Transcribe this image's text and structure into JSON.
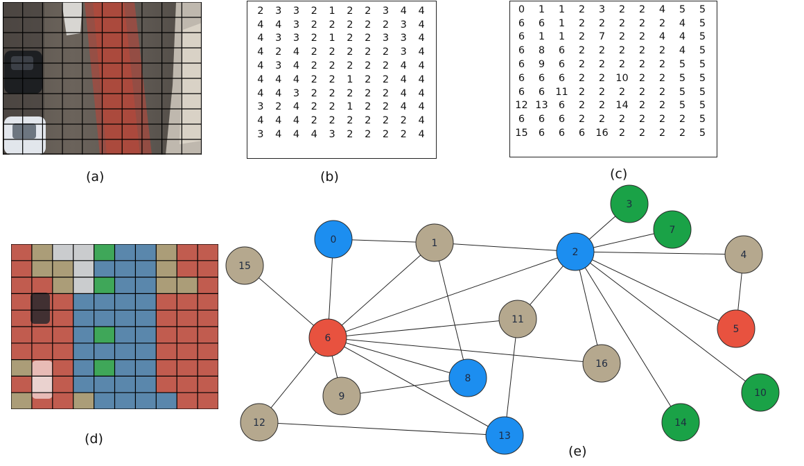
{
  "captions": {
    "a": "(a)",
    "b": "(b)",
    "c": "(c)",
    "d": "(d)",
    "e": "(e)"
  },
  "matrix_b": [
    [
      "2",
      "3",
      "3",
      "2",
      "1",
      "2",
      "2",
      "3",
      "4",
      "4"
    ],
    [
      "4",
      "4",
      "3",
      "2",
      "2",
      "2",
      "2",
      "2",
      "3",
      "4"
    ],
    [
      "4",
      "3",
      "3",
      "2",
      "1",
      "2",
      "2",
      "3",
      "3",
      "4"
    ],
    [
      "4",
      "2",
      "4",
      "2",
      "2",
      "2",
      "2",
      "2",
      "3",
      "4"
    ],
    [
      "4",
      "3",
      "4",
      "2",
      "2",
      "2",
      "2",
      "2",
      "4",
      "4"
    ],
    [
      "4",
      "4",
      "4",
      "2",
      "2",
      "1",
      "2",
      "2",
      "4",
      "4"
    ],
    [
      "4",
      "4",
      "3",
      "2",
      "2",
      "2",
      "2",
      "2",
      "4",
      "4"
    ],
    [
      "3",
      "2",
      "4",
      "2",
      "2",
      "1",
      "2",
      "2",
      "4",
      "4"
    ],
    [
      "4",
      "4",
      "4",
      "2",
      "2",
      "2",
      "2",
      "2",
      "2",
      "4"
    ],
    [
      "3",
      "4",
      "4",
      "4",
      "3",
      "2",
      "2",
      "2",
      "2",
      "4"
    ]
  ],
  "matrix_c": [
    [
      "0",
      "1",
      "1",
      "2",
      "3",
      "2",
      "2",
      "4",
      "5",
      "5"
    ],
    [
      "6",
      "6",
      "1",
      "2",
      "2",
      "2",
      "2",
      "2",
      "4",
      "5"
    ],
    [
      "6",
      "1",
      "1",
      "2",
      "7",
      "2",
      "2",
      "4",
      "4",
      "5"
    ],
    [
      "6",
      "8",
      "6",
      "2",
      "2",
      "2",
      "2",
      "2",
      "4",
      "5"
    ],
    [
      "6",
      "9",
      "6",
      "2",
      "2",
      "2",
      "2",
      "2",
      "5",
      "5"
    ],
    [
      "6",
      "6",
      "6",
      "2",
      "2",
      "10",
      "2",
      "2",
      "5",
      "5"
    ],
    [
      "6",
      "6",
      "11",
      "2",
      "2",
      "2",
      "2",
      "2",
      "5",
      "5"
    ],
    [
      "12",
      "13",
      "6",
      "2",
      "2",
      "14",
      "2",
      "2",
      "5",
      "5"
    ],
    [
      "6",
      "6",
      "6",
      "2",
      "2",
      "2",
      "2",
      "2",
      "2",
      "5"
    ],
    [
      "15",
      "6",
      "6",
      "6",
      "16",
      "2",
      "2",
      "2",
      "2",
      "5"
    ]
  ],
  "colors": {
    "blue": "#1c8ef0",
    "tan": "#b5a88e",
    "green": "#1aa247",
    "red": "#e8523f",
    "segment_red": "#cf5c4f",
    "segment_tan": "#b6a67d",
    "segment_blue": "#5a8db8",
    "segment_green": "#3bb25a",
    "segment_white": "#d9dcdf"
  },
  "segmentation_grid": [
    [
      "red",
      "tan",
      "white",
      "white",
      "green",
      "blue",
      "blue",
      "tan",
      "red",
      "red"
    ],
    [
      "red",
      "tan",
      "tan",
      "white",
      "blue",
      "blue",
      "blue",
      "tan",
      "red",
      "red"
    ],
    [
      "red",
      "red",
      "tan",
      "white",
      "green",
      "blue",
      "blue",
      "tan",
      "tan",
      "red"
    ],
    [
      "red",
      "red",
      "red",
      "blue",
      "blue",
      "blue",
      "blue",
      "red",
      "red",
      "red"
    ],
    [
      "red",
      "red",
      "red",
      "blue",
      "blue",
      "blue",
      "blue",
      "red",
      "red",
      "red"
    ],
    [
      "red",
      "red",
      "red",
      "blue",
      "green",
      "blue",
      "blue",
      "red",
      "red",
      "red"
    ],
    [
      "red",
      "red",
      "red",
      "blue",
      "blue",
      "blue",
      "blue",
      "red",
      "red",
      "red"
    ],
    [
      "tan",
      "red",
      "red",
      "blue",
      "green",
      "blue",
      "blue",
      "red",
      "red",
      "red"
    ],
    [
      "red",
      "white",
      "red",
      "blue",
      "blue",
      "blue",
      "blue",
      "red",
      "red",
      "red"
    ],
    [
      "tan",
      "red",
      "red",
      "tan",
      "blue",
      "blue",
      "blue",
      "blue",
      "red",
      "red"
    ]
  ],
  "graph": {
    "nodes": [
      {
        "id": "0",
        "color": "blue"
      },
      {
        "id": "1",
        "color": "tan"
      },
      {
        "id": "2",
        "color": "blue"
      },
      {
        "id": "3",
        "color": "green"
      },
      {
        "id": "4",
        "color": "tan"
      },
      {
        "id": "5",
        "color": "red"
      },
      {
        "id": "6",
        "color": "red"
      },
      {
        "id": "7",
        "color": "green"
      },
      {
        "id": "8",
        "color": "blue"
      },
      {
        "id": "9",
        "color": "tan"
      },
      {
        "id": "10",
        "color": "green"
      },
      {
        "id": "11",
        "color": "tan"
      },
      {
        "id": "12",
        "color": "tan"
      },
      {
        "id": "13",
        "color": "blue"
      },
      {
        "id": "14",
        "color": "green"
      },
      {
        "id": "15",
        "color": "tan"
      },
      {
        "id": "16",
        "color": "tan"
      }
    ],
    "edges": [
      [
        "0",
        "1"
      ],
      [
        "0",
        "6"
      ],
      [
        "1",
        "2"
      ],
      [
        "1",
        "6"
      ],
      [
        "1",
        "8"
      ],
      [
        "2",
        "3"
      ],
      [
        "2",
        "7"
      ],
      [
        "2",
        "4"
      ],
      [
        "2",
        "5"
      ],
      [
        "2",
        "6"
      ],
      [
        "2",
        "11"
      ],
      [
        "2",
        "16"
      ],
      [
        "2",
        "14"
      ],
      [
        "2",
        "10"
      ],
      [
        "4",
        "5"
      ],
      [
        "6",
        "15"
      ],
      [
        "6",
        "11"
      ],
      [
        "6",
        "16"
      ],
      [
        "6",
        "8"
      ],
      [
        "6",
        "13"
      ],
      [
        "6",
        "9"
      ],
      [
        "6",
        "12"
      ],
      [
        "9",
        "8"
      ],
      [
        "11",
        "13"
      ],
      [
        "12",
        "13"
      ]
    ]
  }
}
